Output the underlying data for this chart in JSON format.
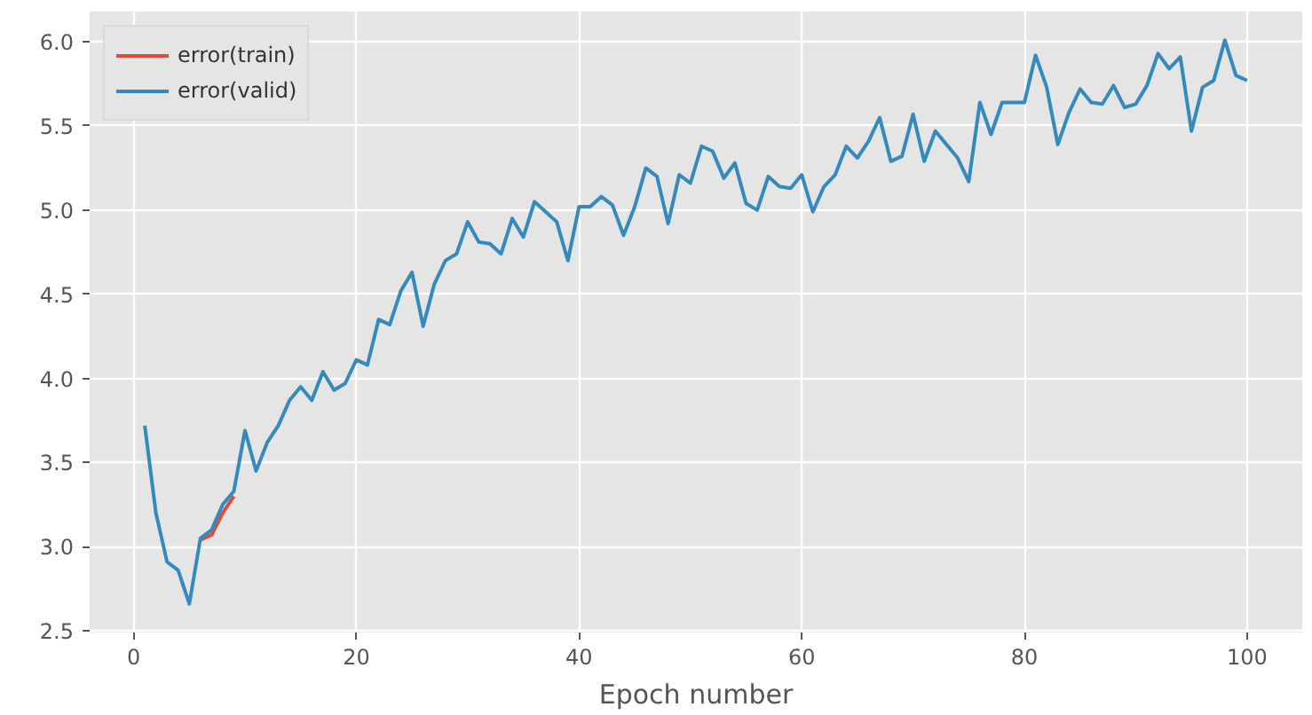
{
  "chart_data": {
    "type": "line",
    "xlabel": "Epoch number",
    "x": [
      1,
      2,
      3,
      4,
      5,
      6,
      7,
      8,
      9,
      10,
      11,
      12,
      13,
      14,
      15,
      16,
      17,
      18,
      19,
      20,
      21,
      22,
      23,
      24,
      25,
      26,
      27,
      28,
      29,
      30,
      31,
      32,
      33,
      34,
      35,
      36,
      37,
      38,
      39,
      40,
      41,
      42,
      43,
      44,
      45,
      46,
      47,
      48,
      49,
      50,
      51,
      52,
      53,
      54,
      55,
      56,
      57,
      58,
      59,
      60,
      61,
      62,
      63,
      64,
      65,
      66,
      67,
      68,
      69,
      70,
      71,
      72,
      73,
      74,
      75,
      76,
      77,
      78,
      79,
      80,
      81,
      82,
      83,
      84,
      85,
      86,
      87,
      88,
      89,
      90,
      91,
      92,
      93,
      94,
      95,
      96,
      97,
      98,
      99,
      100
    ],
    "series": [
      {
        "name": "error(train)",
        "color": "#e24a33",
        "values": [
          null,
          null,
          null,
          null,
          null,
          3.04,
          3.07,
          3.2,
          3.3,
          null,
          null,
          null,
          null,
          null,
          null,
          null,
          null,
          null,
          null,
          null,
          null,
          null,
          null,
          null,
          null,
          null,
          null,
          null,
          null,
          null,
          null,
          null,
          null,
          null,
          null,
          null,
          null,
          null,
          null,
          null,
          null,
          null,
          null,
          null,
          null,
          null,
          null,
          null,
          null,
          null,
          null,
          null,
          null,
          null,
          null,
          null,
          null,
          null,
          null,
          null,
          null,
          null,
          null,
          null,
          null,
          null,
          null,
          null,
          null,
          null,
          null,
          null,
          null,
          null,
          null,
          null,
          null,
          null,
          null,
          null,
          null,
          null,
          null,
          null,
          null,
          null,
          null,
          null,
          null,
          null,
          null,
          null,
          null,
          null,
          null,
          null,
          null,
          null,
          null,
          null
        ]
      },
      {
        "name": "error(valid)",
        "color": "#348abd",
        "values": [
          3.72,
          3.2,
          2.91,
          2.86,
          2.66,
          3.05,
          3.1,
          3.25,
          3.33,
          3.69,
          3.45,
          3.62,
          3.72,
          3.87,
          3.95,
          3.87,
          4.04,
          3.93,
          3.97,
          4.11,
          4.08,
          4.35,
          4.32,
          4.52,
          4.63,
          4.31,
          4.56,
          4.7,
          4.74,
          4.93,
          4.81,
          4.8,
          4.74,
          4.95,
          4.84,
          5.05,
          4.99,
          4.93,
          4.7,
          5.02,
          5.02,
          5.08,
          5.03,
          4.85,
          5.02,
          5.25,
          5.2,
          4.92,
          5.21,
          5.16,
          5.38,
          5.35,
          5.19,
          5.28,
          5.04,
          5.0,
          5.2,
          5.14,
          5.13,
          5.21,
          4.99,
          5.14,
          5.21,
          5.38,
          5.31,
          5.41,
          5.55,
          5.29,
          5.32,
          5.57,
          5.29,
          5.47,
          5.39,
          5.31,
          5.17,
          5.64,
          5.45,
          5.64,
          5.64,
          5.64,
          5.92,
          5.73,
          5.39,
          5.58,
          5.72,
          5.64,
          5.63,
          5.74,
          5.61,
          5.63,
          5.74,
          5.93,
          5.84,
          5.91,
          5.47,
          5.73,
          5.77,
          6.01,
          5.8,
          5.77
        ]
      }
    ],
    "xlim": [
      -3.95,
      104.95
    ],
    "ylim": [
      2.49,
      6.18
    ],
    "xticks": [
      0,
      20,
      40,
      60,
      80,
      100
    ],
    "yticks": [
      {
        "value": 2.5,
        "label": "2.5"
      },
      {
        "value": 3.0,
        "label": "3.0"
      },
      {
        "value": 3.5,
        "label": "3.5"
      },
      {
        "value": 4.0,
        "label": "4.0"
      },
      {
        "value": 4.5,
        "label": "4.5"
      },
      {
        "value": 5.0,
        "label": "5.0"
      },
      {
        "value": 5.5,
        "label": "5.5"
      },
      {
        "value": 6.0,
        "label": "6.0"
      }
    ],
    "grid": true,
    "legend": "top left",
    "marker": "none",
    "line_style": "solid"
  }
}
